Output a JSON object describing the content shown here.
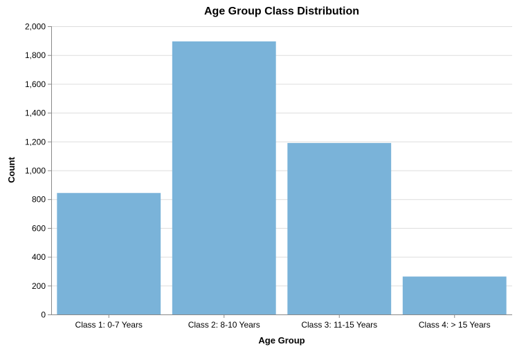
{
  "chart_data": {
    "type": "bar",
    "title": "Age Group Class Distribution",
    "xlabel": "Age Group",
    "ylabel": "Count",
    "categories": [
      "Class 1: 0-7 Years",
      "Class 2: 8-10 Years",
      "Class 3: 11-15 Years",
      "Class 4: > 15 Years"
    ],
    "values": [
      843,
      1895,
      1190,
      263
    ],
    "ylim": [
      0,
      2000
    ],
    "yticks": [
      0,
      200,
      400,
      600,
      800,
      1000,
      1200,
      1400,
      1600,
      1800,
      2000
    ],
    "ytick_labels": [
      "0",
      "200",
      "400",
      "600",
      "800",
      "1,000",
      "1,200",
      "1,400",
      "1,600",
      "1,800",
      "2,000"
    ],
    "grid": true,
    "legend": "none",
    "bar_color": "#7ab3d9"
  }
}
